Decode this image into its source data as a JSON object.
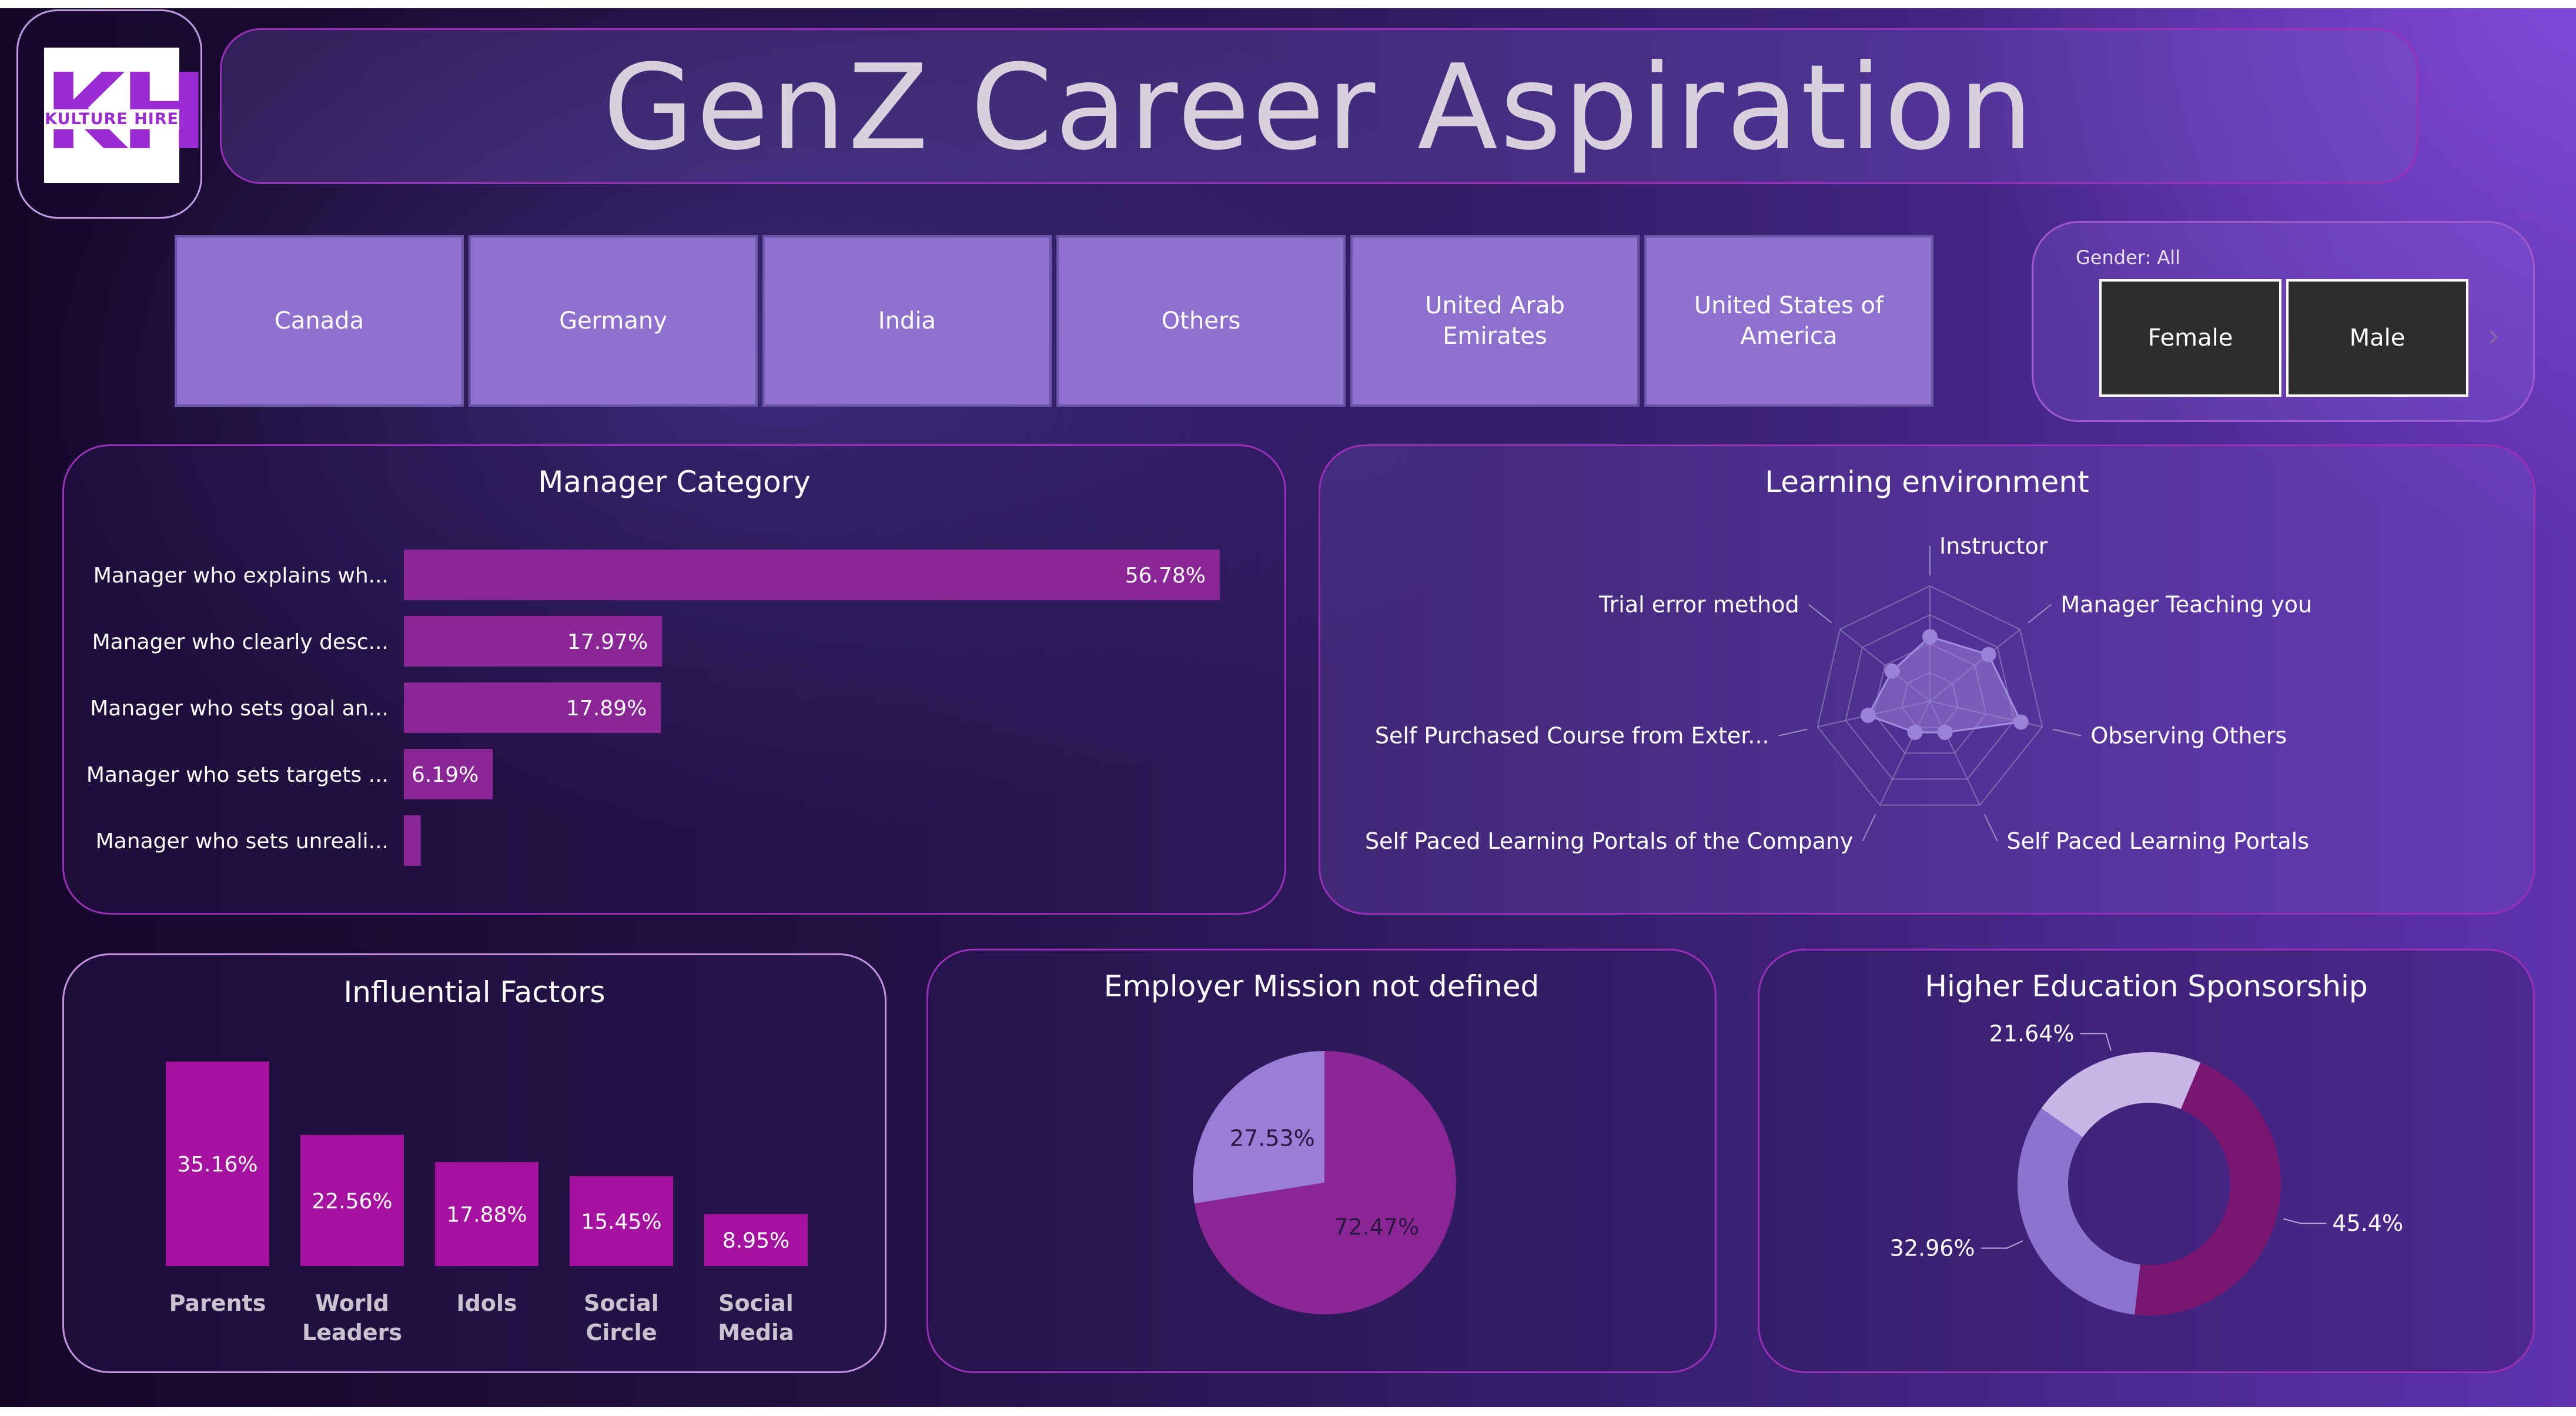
{
  "app": {
    "title": "GenZ Career Aspiration",
    "logo_text_main": "KH",
    "logo_text_band": "KULTURE HIRE"
  },
  "colors": {
    "bar": "#8b2696",
    "bar_dark": "#a4129f",
    "slice_light": "#9a7dd6",
    "slice_dark": "#8b2696",
    "donut_light": "#c8b6e8",
    "donut_mid": "#8e72cf",
    "donut_dark": "#7a1670"
  },
  "country_filter": {
    "items": [
      "Canada",
      "Germany",
      "India",
      "Others",
      "United Arab Emirates",
      "United States of America"
    ]
  },
  "gender_filter": {
    "label": "Gender: All",
    "options": [
      "Female",
      "Male"
    ],
    "scroll_icon": "chevron-right-icon"
  },
  "charts": [
    {
      "title": "Manager Category",
      "chart_data": {
        "type": "bar",
        "orientation": "horizontal",
        "categories": [
          "Manager who explains wh...",
          "Manager who clearly desc...",
          "Manager who sets goal an...",
          "Manager who sets targets ...",
          "Manager who sets unreali..."
        ],
        "values": [
          56.78,
          17.97,
          17.89,
          6.19,
          1.17
        ],
        "value_labels": [
          "56.78%",
          "17.97%",
          "17.89%",
          "6.19%",
          ""
        ],
        "xlim": [
          0,
          56.78
        ]
      }
    },
    {
      "title": "Learning environment",
      "chart_data": {
        "type": "radar",
        "categories": [
          "Instructor",
          "Manager Teaching you",
          "Observing Others",
          "Self Paced Learning Portals",
          "Self Paced Learning Portals of the Company",
          "Self Purchased Course from Exter...",
          "Trial error method"
        ],
        "values": [
          0.56,
          0.65,
          0.81,
          0.3,
          0.3,
          0.55,
          0.42
        ],
        "range": [
          0,
          1
        ]
      }
    },
    {
      "title": "Influential Factors",
      "chart_data": {
        "type": "bar",
        "categories": [
          [
            "Parents"
          ],
          [
            "World",
            "Leaders"
          ],
          [
            "Idols"
          ],
          [
            "Social",
            "Circle"
          ],
          [
            "Social",
            "Media"
          ]
        ],
        "values": [
          35.16,
          22.56,
          17.88,
          15.45,
          8.95
        ],
        "value_labels": [
          "35.16%",
          "22.56%",
          "17.88%",
          "15.45%",
          "8.95%"
        ],
        "ylim": [
          0,
          35.16
        ]
      }
    },
    {
      "title": "Employer Mission not defined",
      "chart_data": {
        "type": "pie",
        "values": [
          72.47,
          27.53
        ],
        "labels": [
          "72.47%",
          "27.53%"
        ]
      }
    },
    {
      "title": "Higher Education Sponsorship",
      "chart_data": {
        "type": "pie",
        "donut": true,
        "values": [
          45.4,
          32.96,
          21.64
        ],
        "labels": [
          "45.4%",
          "32.96%",
          "21.64%"
        ]
      }
    }
  ]
}
